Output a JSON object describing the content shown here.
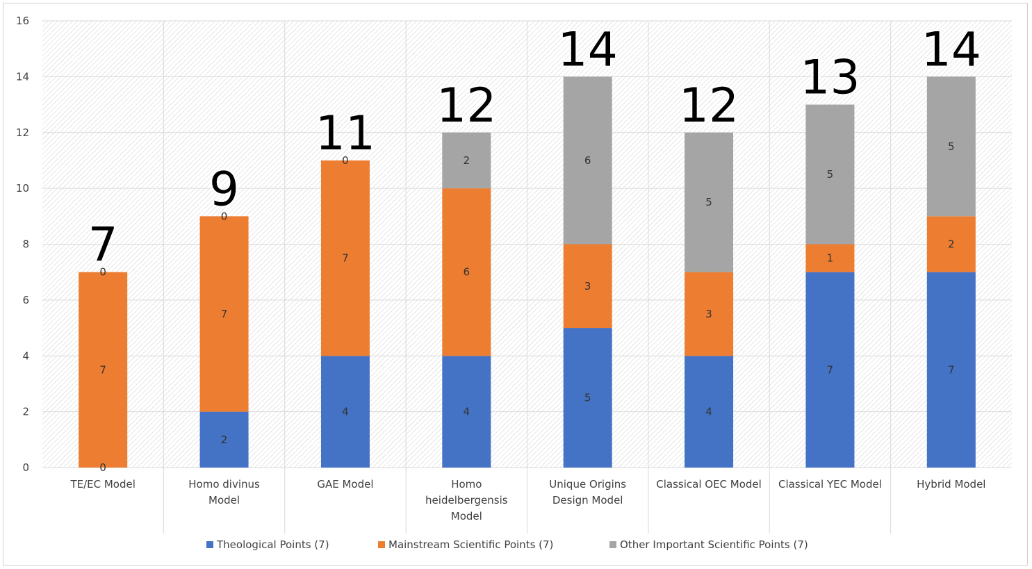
{
  "chart_data": {
    "type": "bar",
    "stacked": true,
    "categories": [
      "TE/EC Model",
      "Homo divinus Model",
      "GAE Model",
      "Homo heidelbergensis Model",
      "Unique Origins Design Model",
      "Classical OEC Model",
      "Classical YEC Model",
      "Hybrid Model"
    ],
    "category_lines": [
      [
        "TE/EC Model"
      ],
      [
        "Homo divinus",
        "Model"
      ],
      [
        "GAE Model"
      ],
      [
        "Homo",
        "heidelbergensis",
        "Model"
      ],
      [
        "Unique Origins",
        "Design Model"
      ],
      [
        "Classical OEC Model"
      ],
      [
        "Classical YEC Model"
      ],
      [
        "Hybrid Model"
      ]
    ],
    "series": [
      {
        "name": "Theological Points (7)",
        "color": "#4472C4",
        "values": [
          0,
          2,
          4,
          4,
          5,
          4,
          7,
          7
        ]
      },
      {
        "name": "Mainstream Scientific Points (7)",
        "color": "#ED7D31",
        "values": [
          7,
          7,
          7,
          6,
          3,
          3,
          1,
          2
        ]
      },
      {
        "name": "Other Important Scientific Points (7)",
        "color": "#A5A5A5",
        "values": [
          0,
          0,
          0,
          2,
          6,
          5,
          5,
          5
        ]
      }
    ],
    "totals": [
      7,
      9,
      11,
      12,
      14,
      12,
      13,
      14
    ],
    "ylim": [
      0,
      16
    ],
    "yticks": [
      0,
      2,
      4,
      6,
      8,
      10,
      12,
      14,
      16
    ],
    "grid": true,
    "legend": "bottom",
    "title": "",
    "xlabel": "",
    "ylabel": ""
  }
}
